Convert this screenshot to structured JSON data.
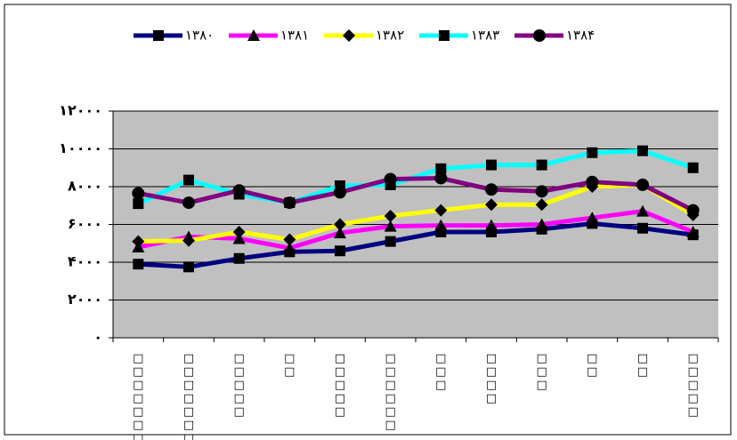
{
  "chart_data": {
    "type": "line",
    "categories": [
      "□□□□□□□□",
      "□□□□□□□□",
      "□□□□□",
      "□□",
      "□□□□□",
      "□□□□□□",
      "□□□",
      "□□□□",
      "□□□",
      "□□",
      "□□",
      "□□□□□"
    ],
    "series": [
      {
        "name": "۱۳۸۰",
        "color": "#000080",
        "marker": "square",
        "values": [
          3900,
          3750,
          4200,
          4550,
          4600,
          5100,
          5600,
          5600,
          5750,
          6050,
          5800,
          5450
        ]
      },
      {
        "name": "۱۳۸۱",
        "color": "#ff00ff",
        "marker": "triangle",
        "values": [
          4800,
          5350,
          5250,
          4750,
          5550,
          5900,
          5950,
          5950,
          6000,
          6350,
          6700,
          5600
        ]
      },
      {
        "name": "۱۳۸۲",
        "color": "#ffff00",
        "marker": "diamond",
        "values": [
          5100,
          5150,
          5600,
          5200,
          6000,
          6450,
          6750,
          7050,
          7050,
          8000,
          8100,
          6500
        ]
      },
      {
        "name": "۱۳۸۳",
        "color": "#00ffff",
        "marker": "square",
        "values": [
          7100,
          8350,
          7600,
          7150,
          8050,
          8100,
          8950,
          9150,
          9150,
          9800,
          9900,
          9000
        ]
      },
      {
        "name": "۱۳۸۴",
        "color": "#800080",
        "marker": "circle",
        "values": [
          7650,
          7150,
          7800,
          7150,
          7700,
          8400,
          8450,
          7850,
          7750,
          8250,
          8100,
          6750
        ]
      }
    ],
    "marker_color": "#000000",
    "ylim": [
      0,
      12000
    ],
    "yticks": [
      {
        "value": 0,
        "label": "۰"
      },
      {
        "value": 2000,
        "label": "۲۰۰۰"
      },
      {
        "value": 4000,
        "label": "۴۰۰۰"
      },
      {
        "value": 6000,
        "label": "۶۰۰۰"
      },
      {
        "value": 8000,
        "label": "۸۰۰۰"
      },
      {
        "value": 10000,
        "label": "۱۰۰۰۰"
      },
      {
        "value": 12000,
        "label": "۱۲۰۰۰"
      }
    ],
    "grid": true,
    "plot_background": "#c0c0c0",
    "legend": "top"
  }
}
